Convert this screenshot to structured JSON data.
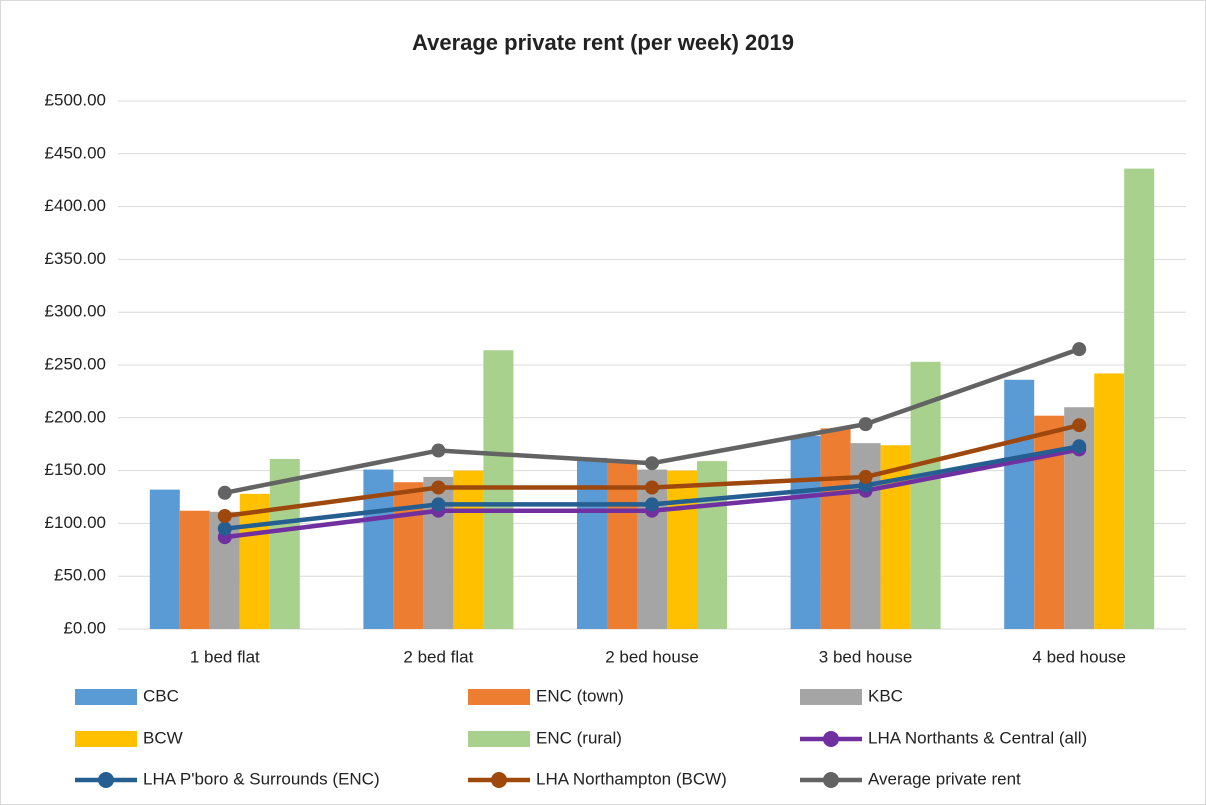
{
  "chart_data": {
    "type": "bar",
    "title": "Average private rent (per week) 2019",
    "categories": [
      "1 bed flat",
      "2 bed flat",
      "2 bed house",
      "3 bed house",
      "4 bed house"
    ],
    "series": [
      {
        "name": "CBC",
        "type": "bar",
        "color": "#5b9bd5",
        "values": [
          132,
          151,
          162,
          183,
          236
        ]
      },
      {
        "name": "ENC (town)",
        "type": "bar",
        "color": "#ed7d31",
        "values": [
          112,
          139,
          160,
          190,
          202
        ]
      },
      {
        "name": "KBC",
        "type": "bar",
        "color": "#a5a5a5",
        "values": [
          111,
          144,
          151,
          176,
          210
        ]
      },
      {
        "name": "BCW",
        "type": "bar",
        "color": "#ffc000",
        "values": [
          128,
          150,
          150,
          174,
          242
        ]
      },
      {
        "name": "ENC (rural)",
        "type": "bar",
        "color": "#a9d18e",
        "values": [
          161,
          264,
          159,
          253,
          436
        ]
      },
      {
        "name": "LHA Northants & Central (all)",
        "type": "line",
        "color": "#7030a0",
        "values": [
          87,
          112,
          112,
          131,
          170
        ]
      },
      {
        "name": "LHA P'boro & Surrounds (ENC)",
        "type": "line",
        "color": "#255e91",
        "values": [
          95,
          118,
          118,
          136,
          173
        ]
      },
      {
        "name": "LHA Northampton (BCW)",
        "type": "line",
        "color": "#9e480e",
        "values": [
          107,
          134,
          134,
          144,
          193
        ]
      },
      {
        "name": "Average private rent",
        "type": "line",
        "color": "#636363",
        "values": [
          129,
          169,
          157,
          194,
          265
        ]
      }
    ],
    "ylim": [
      0,
      500
    ],
    "yticks": [
      {
        "value": 0,
        "label": "£0.00"
      },
      {
        "value": 50,
        "label": "£50.00"
      },
      {
        "value": 100,
        "label": "£100.00"
      },
      {
        "value": 150,
        "label": "£150.00"
      },
      {
        "value": 200,
        "label": "£200.00"
      },
      {
        "value": 250,
        "label": "£250.00"
      },
      {
        "value": 300,
        "label": "£300.00"
      },
      {
        "value": 350,
        "label": "£350.00"
      },
      {
        "value": 400,
        "label": "£400.00"
      },
      {
        "value": 450,
        "label": "£450.00"
      },
      {
        "value": 500,
        "label": "£500.00"
      }
    ],
    "grid": true,
    "legend": "bottom"
  }
}
